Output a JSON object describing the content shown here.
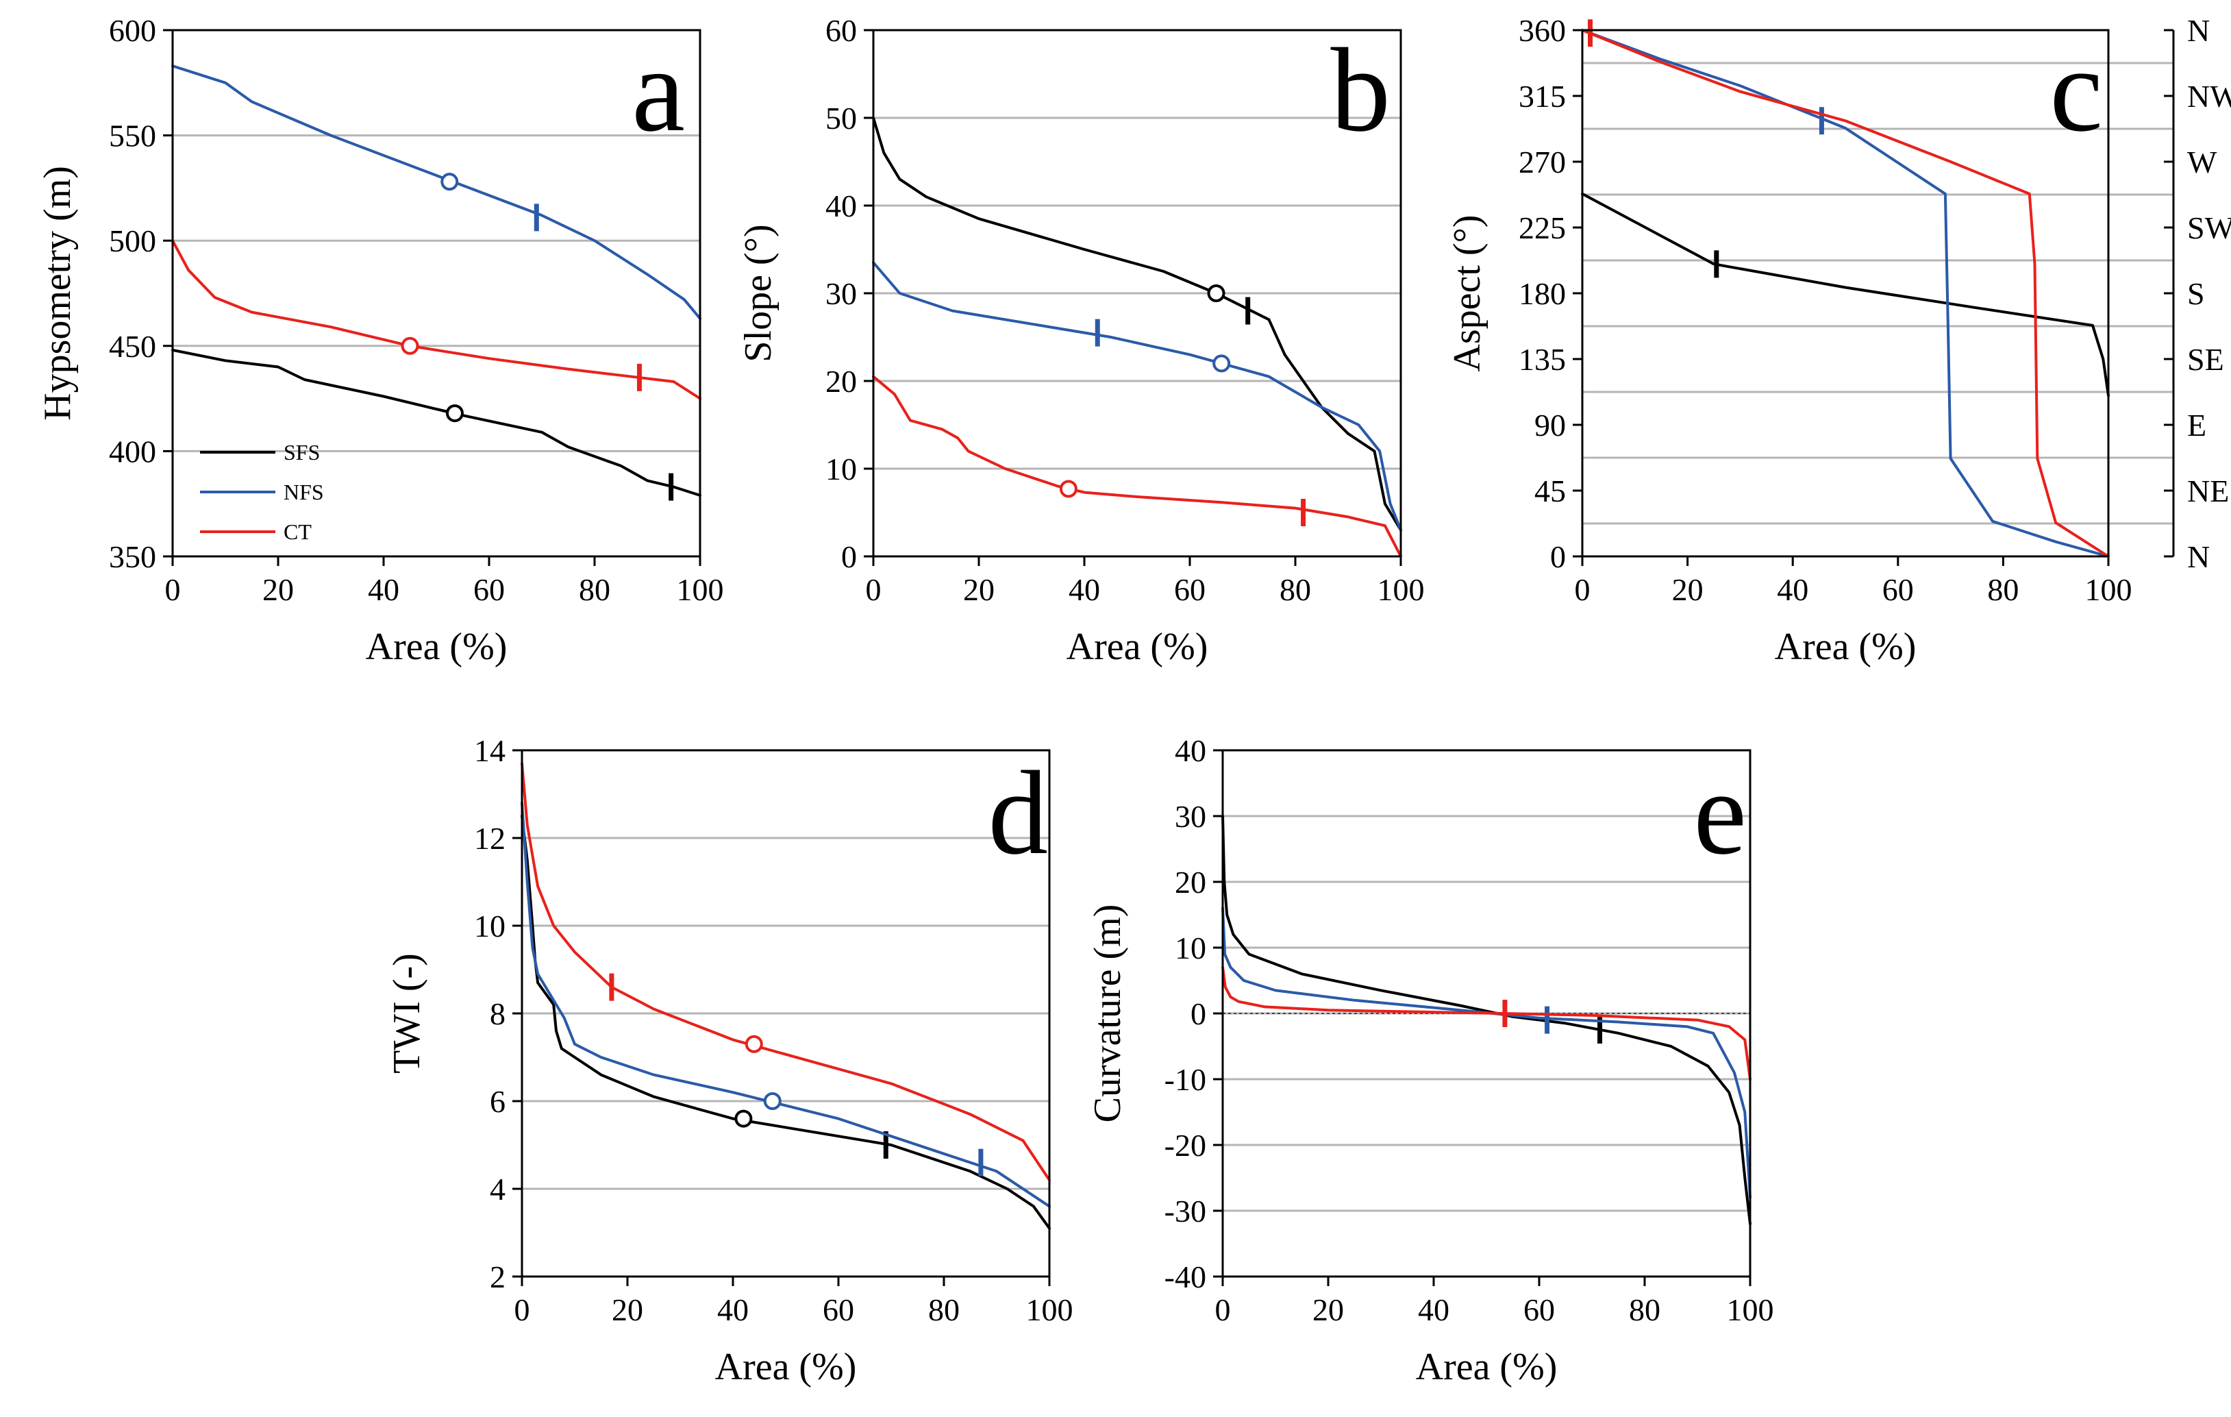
{
  "chart_data": [
    {
      "id": "a",
      "type": "line",
      "panel_label": "a",
      "xlabel": "Area (%)",
      "ylabel": "Hypsometry (m)",
      "xlim": [
        0,
        100
      ],
      "ylim": [
        350,
        600
      ],
      "xticks": [
        0,
        20,
        40,
        60,
        80,
        100
      ],
      "yticks": [
        350,
        400,
        450,
        500,
        550,
        600
      ],
      "grid": "horizontal",
      "legend": {
        "position": "bottom-left",
        "entries": [
          "SFS",
          "NFS",
          "CT"
        ]
      },
      "series": [
        {
          "name": "SFS",
          "color": "#000000",
          "x": [
            0,
            10,
            20,
            25,
            40,
            50,
            55,
            70,
            75,
            85,
            90,
            95,
            100
          ],
          "y": [
            448,
            443,
            440,
            434,
            426,
            420,
            417,
            409,
            402,
            393,
            386,
            383,
            379
          ],
          "circle": [
            53.5,
            418
          ],
          "bar": [
            94.5,
            383
          ]
        },
        {
          "name": "NFS",
          "color": "#2b5aa8",
          "x": [
            0,
            10,
            15,
            30,
            50,
            70,
            80,
            90,
            97,
            100
          ],
          "y": [
            583,
            575,
            566,
            550,
            531,
            512,
            500,
            484,
            472,
            463
          ],
          "circle": [
            52.5,
            528
          ],
          "bar": [
            69,
            511
          ]
        },
        {
          "name": "CT",
          "color": "#e8211c",
          "x": [
            0,
            3,
            8,
            15,
            30,
            45,
            60,
            75,
            85,
            95,
            100
          ],
          "y": [
            500,
            486,
            473,
            466,
            459,
            450,
            444,
            439,
            436,
            433,
            425
          ],
          "circle": [
            45,
            450
          ],
          "bar": [
            88.5,
            435
          ]
        }
      ]
    },
    {
      "id": "b",
      "type": "line",
      "panel_label": "b",
      "xlabel": "Area (%)",
      "ylabel": "Slope (°)",
      "xlim": [
        0,
        100
      ],
      "ylim": [
        0,
        60
      ],
      "xticks": [
        0,
        20,
        40,
        60,
        80,
        100
      ],
      "yticks": [
        0,
        10,
        20,
        30,
        40,
        50,
        60
      ],
      "grid": "horizontal",
      "series": [
        {
          "name": "SFS",
          "color": "#000000",
          "x": [
            0,
            2,
            5,
            10,
            20,
            40,
            55,
            65,
            75,
            78,
            85,
            90,
            95,
            97,
            100
          ],
          "y": [
            50,
            46,
            43,
            41,
            38.5,
            35,
            32.5,
            30,
            27,
            23,
            17,
            14,
            12,
            6,
            3
          ],
          "circle": [
            65,
            30
          ],
          "bar": [
            71,
            28
          ]
        },
        {
          "name": "NFS",
          "color": "#2b5aa8",
          "x": [
            0,
            5,
            15,
            30,
            45,
            60,
            75,
            85,
            92,
            96,
            98,
            100
          ],
          "y": [
            33.5,
            30,
            28,
            26.5,
            25,
            23,
            20.5,
            17,
            15,
            12,
            6,
            3
          ],
          "circle": [
            66,
            22
          ],
          "bar": [
            42.5,
            25.5
          ]
        },
        {
          "name": "CT",
          "color": "#e8211c",
          "x": [
            0,
            4,
            7,
            13,
            16,
            18,
            25,
            35,
            40,
            50,
            65,
            80,
            90,
            97,
            100
          ],
          "y": [
            20.5,
            18.5,
            15.5,
            14.5,
            13.5,
            12,
            10,
            8,
            7.3,
            6.8,
            6.2,
            5.5,
            4.5,
            3.5,
            0
          ],
          "circle": [
            37,
            7.7
          ],
          "bar": [
            81.5,
            5
          ]
        }
      ]
    },
    {
      "id": "c",
      "type": "line",
      "panel_label": "c",
      "xlabel": "Area (%)",
      "ylabel": "Aspect (°)",
      "xlim": [
        0,
        100
      ],
      "ylim": [
        0,
        360
      ],
      "xticks": [
        0,
        20,
        40,
        60,
        80,
        100
      ],
      "yticks": [
        0,
        45,
        90,
        135,
        180,
        225,
        270,
        315,
        360
      ],
      "grid": "horizontal-compass",
      "compass_labels": [
        "N",
        "NE",
        "E",
        "SE",
        "S",
        "SW",
        "W",
        "NW",
        "N"
      ],
      "series": [
        {
          "name": "SFS",
          "color": "#000000",
          "x": [
            0,
            25,
            50,
            75,
            97,
            99,
            100
          ],
          "y": [
            248,
            200,
            184,
            170,
            158,
            135,
            110
          ],
          "bar": [
            25.5,
            200
          ]
        },
        {
          "name": "NFS",
          "color": "#2b5aa8",
          "x": [
            0,
            15,
            30,
            50,
            69,
            69.5,
            70,
            78,
            90,
            100
          ],
          "y": [
            360,
            340,
            322,
            293,
            248,
            160,
            67,
            24,
            10,
            0
          ],
          "bar": [
            45.5,
            298
          ]
        },
        {
          "name": "CT",
          "color": "#e8211c",
          "x": [
            0,
            15,
            30,
            50,
            70,
            85,
            86,
            86.5,
            90,
            100
          ],
          "y": [
            360,
            338,
            318,
            298,
            270,
            248,
            200,
            67,
            23,
            0
          ],
          "bar": [
            1.5,
            358
          ]
        }
      ]
    },
    {
      "id": "d",
      "type": "line",
      "panel_label": "d",
      "xlabel": "Area (%)",
      "ylabel": "TWI (-)",
      "xlim": [
        0,
        100
      ],
      "ylim": [
        2,
        14
      ],
      "xticks": [
        0,
        20,
        40,
        60,
        80,
        100
      ],
      "yticks": [
        2,
        4,
        6,
        8,
        10,
        12,
        14
      ],
      "grid": "horizontal",
      "series": [
        {
          "name": "SFS",
          "color": "#000000",
          "x": [
            0,
            1,
            2,
            2.5,
            3,
            6,
            6.5,
            7.5,
            10,
            15,
            25,
            40,
            55,
            70,
            85,
            92,
            97,
            100
          ],
          "y": [
            12.5,
            11.5,
            10,
            9.2,
            8.7,
            8.2,
            7.6,
            7.2,
            7,
            6.6,
            6.1,
            5.6,
            5.3,
            5,
            4.4,
            4,
            3.6,
            3.1
          ],
          "circle": [
            42,
            5.6
          ],
          "bar": [
            69,
            5
          ]
        },
        {
          "name": "NFS",
          "color": "#2b5aa8",
          "x": [
            0,
            1,
            2,
            3,
            5,
            8,
            10,
            15,
            25,
            40,
            60,
            80,
            90,
            100
          ],
          "y": [
            12.8,
            11,
            9.5,
            8.9,
            8.5,
            7.9,
            7.3,
            7,
            6.6,
            6.2,
            5.6,
            4.8,
            4.4,
            3.6
          ],
          "circle": [
            47.5,
            6
          ],
          "bar": [
            87,
            4.6
          ]
        },
        {
          "name": "CT",
          "color": "#e8211c",
          "x": [
            0,
            1,
            3,
            6,
            10,
            17,
            25,
            40,
            55,
            70,
            85,
            95,
            100
          ],
          "y": [
            13.7,
            12.3,
            10.9,
            10,
            9.4,
            8.6,
            8.1,
            7.4,
            6.9,
            6.4,
            5.7,
            5.1,
            4.2
          ],
          "circle": [
            44,
            7.3
          ],
          "bar": [
            17,
            8.6
          ]
        }
      ]
    },
    {
      "id": "e",
      "type": "line",
      "panel_label": "e",
      "xlabel": "Area (%)",
      "ylabel": "Curvature (m)",
      "xlim": [
        0,
        100
      ],
      "ylim": [
        -40,
        40
      ],
      "xticks": [
        0,
        20,
        40,
        60,
        80,
        100
      ],
      "yticks": [
        -40,
        -30,
        -20,
        -10,
        0,
        10,
        20,
        30,
        40
      ],
      "grid": "horizontal",
      "series": [
        {
          "name": "SFS",
          "color": "#000000",
          "x": [
            0,
            0.3,
            0.8,
            2,
            5,
            15,
            30,
            45,
            55,
            65,
            75,
            85,
            92,
            96,
            98,
            99,
            100
          ],
          "y": [
            30,
            20,
            15,
            12,
            9,
            6,
            3.5,
            1.2,
            -0.5,
            -1.5,
            -3,
            -5,
            -8,
            -12,
            -17,
            -25,
            -32
          ],
          "bar": [
            71.5,
            -2.5
          ]
        },
        {
          "name": "NFS",
          "color": "#2b5aa8",
          "x": [
            0,
            0.4,
            1.5,
            4,
            10,
            25,
            45,
            60,
            75,
            88,
            93,
            95,
            97,
            99,
            100
          ],
          "y": [
            16,
            9,
            7,
            5,
            3.5,
            2,
            0.5,
            -0.7,
            -1.3,
            -2,
            -3,
            -6,
            -9,
            -15,
            -28
          ],
          "bar": [
            61.5,
            -1
          ]
        },
        {
          "name": "CT",
          "color": "#e8211c",
          "x": [
            0,
            0.5,
            1.5,
            3,
            8,
            20,
            40,
            53,
            70,
            90,
            96,
            99,
            100
          ],
          "y": [
            7,
            4,
            2.5,
            1.8,
            1,
            0.5,
            0.2,
            0,
            -0.3,
            -1,
            -2,
            -4,
            -10
          ],
          "bar": [
            53.5,
            0
          ]
        }
      ]
    }
  ]
}
